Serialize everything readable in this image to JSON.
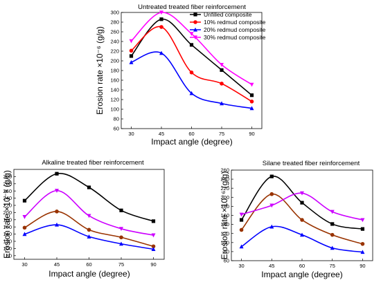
{
  "chart_data": [
    {
      "type": "line",
      "title": "Untreated treated fiber reinforcement",
      "xlabel": "Impact angle (degree)",
      "ylabel": "Erosion rate ×10⁻⁶ (g/g)",
      "xlim": [
        25,
        95
      ],
      "ylim": [
        60,
        300
      ],
      "xticks": [
        30,
        45,
        60,
        75,
        90
      ],
      "yticks": [
        60,
        80,
        100,
        120,
        140,
        160,
        180,
        200,
        220,
        240,
        260,
        280,
        300
      ],
      "legend": "top-right",
      "smooth": true,
      "series": [
        {
          "name": "Unfilled composite",
          "color": "#000000",
          "marker": "square",
          "x": [
            30,
            45,
            60,
            75,
            90
          ],
          "values": [
            210,
            286,
            233,
            181,
            129
          ]
        },
        {
          "name": "10% redmud composite",
          "color": "#ff0000",
          "marker": "circle",
          "x": [
            30,
            45,
            60,
            75,
            90
          ],
          "values": [
            221,
            270,
            176,
            153,
            116
          ]
        },
        {
          "name": "20% redmud composite",
          "color": "#0000ff",
          "marker": "triangle-up",
          "x": [
            30,
            45,
            60,
            75,
            90
          ],
          "values": [
            197,
            216,
            133,
            112,
            102
          ]
        },
        {
          "name": "30% redmud composite",
          "color": "#ff00ff",
          "marker": "triangle-down",
          "x": [
            30,
            45,
            60,
            75,
            90
          ],
          "values": [
            241,
            300,
            256,
            192,
            151
          ]
        }
      ]
    },
    {
      "type": "line",
      "title": "Alkaline treated fiber reinforcement",
      "xlabel": "Impact angle (degree)",
      "ylabel": "Erosion rate ×10⁻⁶ (g/g)",
      "xlim": [
        25,
        95
      ],
      "ylim": [
        70,
        320
      ],
      "xticks": [
        30,
        45,
        60,
        75,
        90
      ],
      "yticks": [
        80,
        100,
        120,
        140,
        160,
        180,
        200,
        220,
        240,
        260,
        280,
        300
      ],
      "smooth": true,
      "series": [
        {
          "color": "#000000",
          "marker": "square",
          "x": [
            30,
            45,
            60,
            75,
            90
          ],
          "values": [
            233,
            308,
            270,
            206,
            176
          ]
        },
        {
          "color": "#993300",
          "marker": "circle",
          "x": [
            30,
            45,
            60,
            75,
            90
          ],
          "values": [
            158,
            203,
            152,
            131,
            106
          ]
        },
        {
          "color": "#0000ff",
          "marker": "triangle-up",
          "x": [
            30,
            45,
            60,
            75,
            90
          ],
          "values": [
            140,
            166,
            133,
            113,
            98
          ]
        },
        {
          "color": "#cc00ff",
          "marker": "triangle-down",
          "x": [
            30,
            45,
            60,
            75,
            90
          ],
          "values": [
            188,
            261,
            191,
            155,
            137
          ]
        }
      ]
    },
    {
      "type": "line",
      "title": "Silane treated fiber reinforcement",
      "xlabel": "Impact angle (degree)",
      "ylabel": "Erosion rate ×10⁻⁶ (g/g)",
      "xlim": [
        25,
        95
      ],
      "ylim": [
        60,
        260
      ],
      "xticks": [
        30,
        45,
        60,
        75,
        90
      ],
      "yticks": [
        60,
        80,
        100,
        120,
        140,
        160,
        180,
        200,
        220,
        240,
        260
      ],
      "smooth": true,
      "series": [
        {
          "color": "#000000",
          "marker": "square",
          "x": [
            30,
            45,
            60,
            75,
            90
          ],
          "values": [
            150,
            246,
            188,
            141,
            130
          ]
        },
        {
          "color": "#993300",
          "marker": "circle",
          "x": [
            30,
            45,
            60,
            75,
            90
          ],
          "values": [
            128,
            207,
            150,
            117,
            97
          ]
        },
        {
          "color": "#0000ff",
          "marker": "triangle-up",
          "x": [
            30,
            45,
            60,
            75,
            90
          ],
          "values": [
            91,
            135,
            117,
            88,
            79
          ]
        },
        {
          "color": "#cc00ff",
          "marker": "triangle-down",
          "x": [
            30,
            45,
            60,
            75,
            90
          ],
          "values": [
            162,
            182,
            209,
            168,
            150
          ]
        }
      ]
    }
  ]
}
